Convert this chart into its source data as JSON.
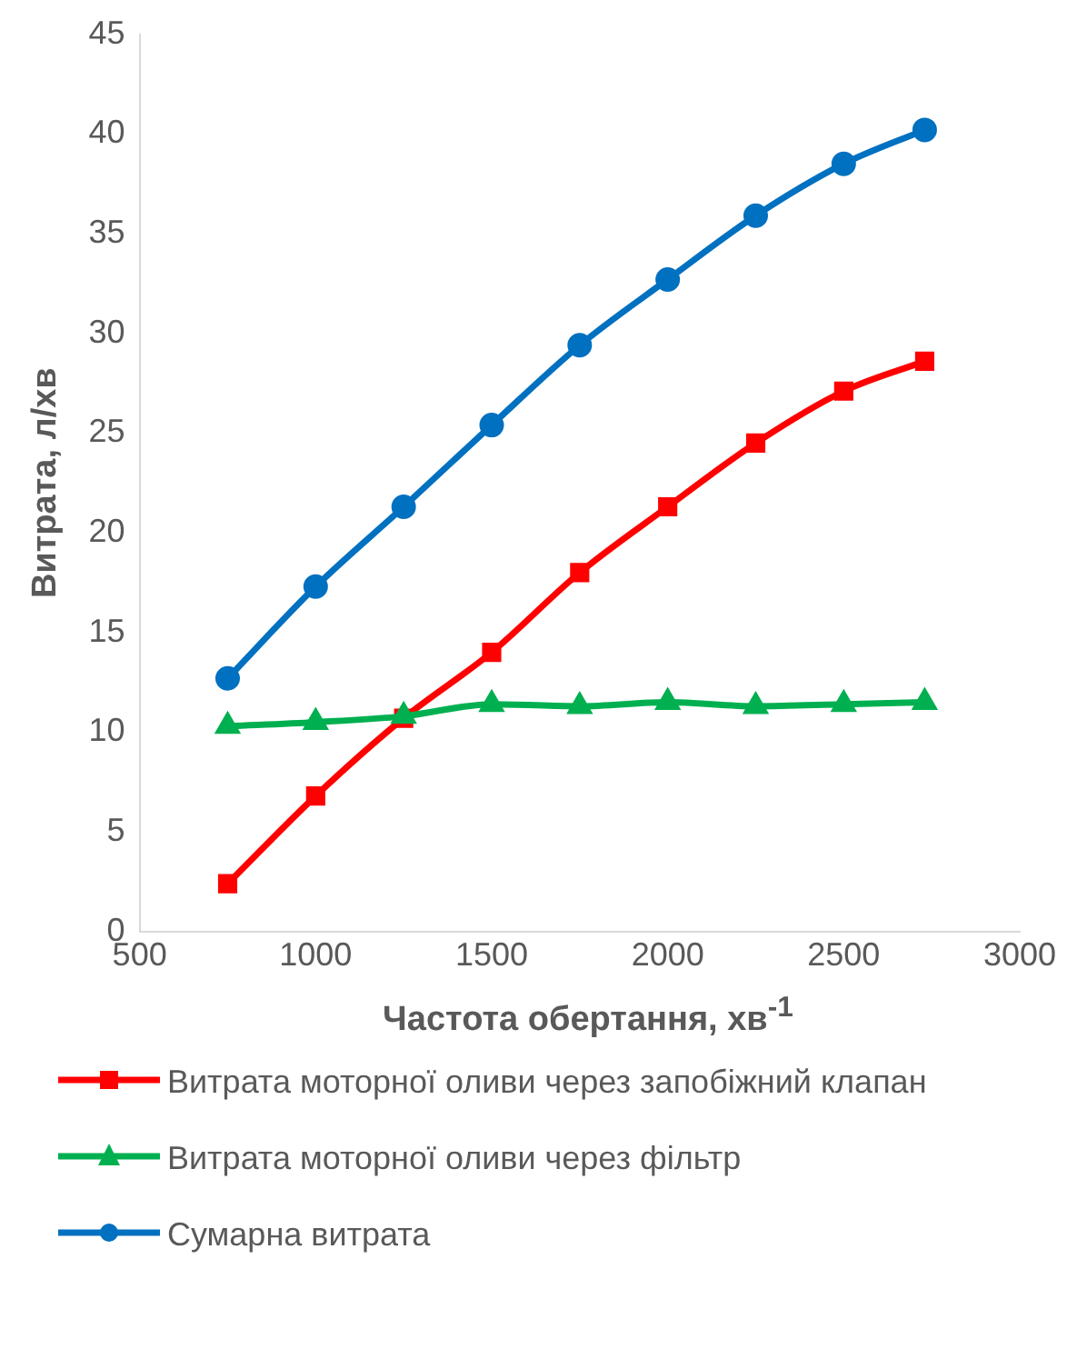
{
  "chart_data": {
    "type": "line",
    "xlabel": "Частота обертання, хв$^{-1}$",
    "ylabel": "Витрата, л/хв",
    "x": [
      750,
      1000,
      1250,
      1500,
      1750,
      2000,
      2250,
      2500,
      2730
    ],
    "series": [
      {
        "name": "Витрата моторної оливи через запобіжний клапан",
        "color": "#ff0000",
        "marker": "square",
        "values": [
          2.4,
          6.8,
          10.7,
          14.0,
          18.0,
          21.3,
          24.5,
          27.1,
          28.6
        ]
      },
      {
        "name": "Витрата моторної оливи через фільтр",
        "color": "#00b050",
        "marker": "triangle",
        "values": [
          10.3,
          10.5,
          10.8,
          11.4,
          11.3,
          11.5,
          11.3,
          11.4,
          11.5
        ]
      },
      {
        "name": "Сумарна витрата",
        "color": "#0070c0",
        "marker": "circle",
        "values": [
          12.7,
          17.3,
          21.3,
          25.4,
          29.4,
          32.7,
          35.9,
          38.5,
          40.2
        ]
      }
    ],
    "xlim": [
      500,
      3000
    ],
    "xticks": [
      500,
      1000,
      1500,
      2000,
      2500,
      3000
    ],
    "ylim": [
      0,
      45
    ],
    "yticks": [
      0,
      5,
      10,
      15,
      20,
      25,
      30,
      35,
      40,
      45
    ],
    "grid": false,
    "legend": "bottom",
    "line_style": "solid"
  }
}
